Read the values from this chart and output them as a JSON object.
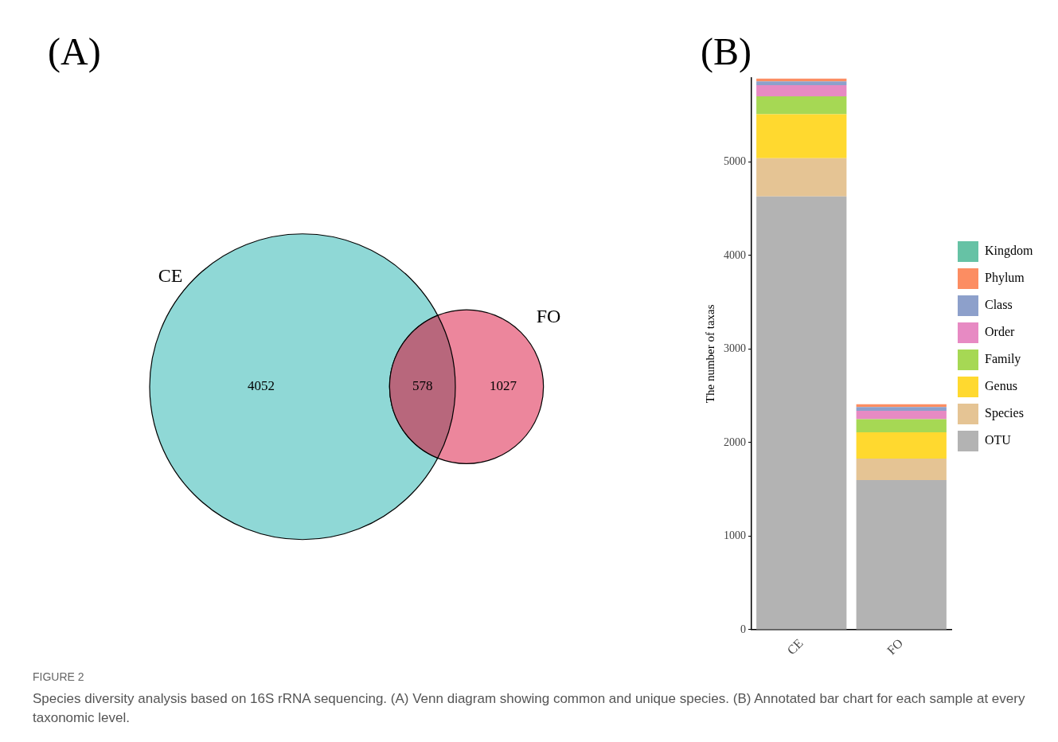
{
  "chart_data": [
    {
      "type": "other",
      "title": "(A)",
      "categories": [
        "CE",
        "FO"
      ],
      "values": [
        4052,
        1027
      ],
      "colors": [
        "#8fd8d6",
        "#ec869c"
      ],
      "data_labels": true,
      "annotations": [
        "578"
      ]
    },
    {
      "type": "bar",
      "title": "(B)",
      "categories": [
        "CE",
        "FO"
      ],
      "stacked": true,
      "ylabel": "The number of taxas",
      "ylim": [
        0,
        5900
      ],
      "yticks": [
        0,
        1000,
        2000,
        3000,
        4000,
        5000
      ],
      "grid": false,
      "legend": "right",
      "series": [
        {
          "name": "OTU",
          "color": "#b3b3b3",
          "values": [
            4630,
            1600
          ]
        },
        {
          "name": "Species",
          "color": "#e5c494",
          "values": [
            410,
            230
          ]
        },
        {
          "name": "Genus",
          "color": "#ffd92f",
          "values": [
            470,
            280
          ]
        },
        {
          "name": "Family",
          "color": "#a6d854",
          "values": [
            190,
            140
          ]
        },
        {
          "name": "Order",
          "color": "#e78ac3",
          "values": [
            120,
            90
          ]
        },
        {
          "name": "Class",
          "color": "#8da0cb",
          "values": [
            40,
            40
          ]
        },
        {
          "name": "Phylum",
          "color": "#fc8d62",
          "values": [
            30,
            30
          ]
        },
        {
          "name": "Kingdom",
          "color": "#66c2a5",
          "values": [
            null,
            null
          ]
        }
      ],
      "annotations": [
        "FIGURE 2",
        "Species diversity analysis based on 16S rRNA sequencing. (A) Venn diagram showing common and unique species. (B) Annotated bar chart for each sample at every taxonomic level."
      ]
    }
  ]
}
